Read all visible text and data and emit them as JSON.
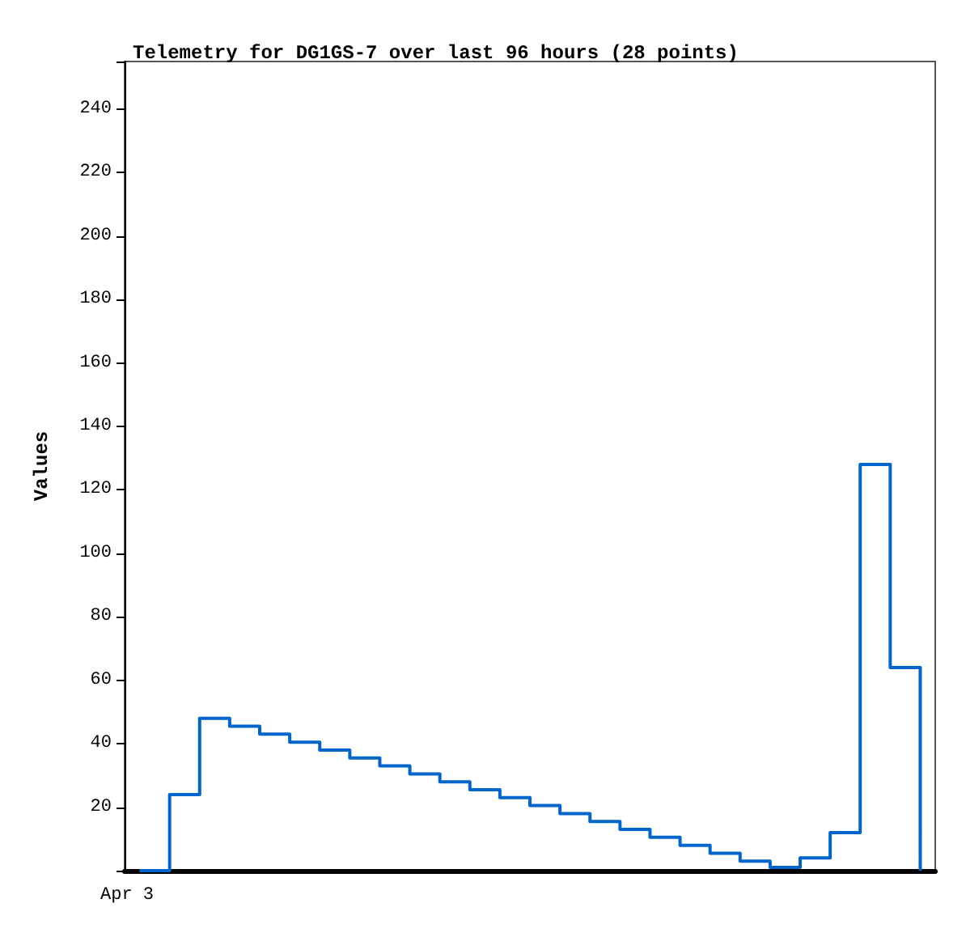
{
  "chart_data": {
    "type": "step",
    "title": "Telemetry for DG1GS-7 over last 96 hours (28 points)",
    "ylabel": "Values",
    "annotations": [
      "Apr 3"
    ],
    "categories": [
      null,
      null,
      null,
      null,
      null,
      null,
      null,
      null,
      null,
      null,
      null,
      null,
      null,
      null,
      null,
      null,
      null,
      null,
      null,
      null,
      null,
      null,
      null,
      null,
      null,
      null,
      null
    ],
    "ylim": [
      0,
      255
    ],
    "yticks": [
      {
        "value": 0,
        "label": null
      },
      20,
      40,
      60,
      80,
      100,
      120,
      140,
      160,
      180,
      200,
      220,
      240
    ],
    "grid": false,
    "marker": "none",
    "line_style": "solid",
    "series": [
      {
        "color": "#0066cc",
        "values": [
          0,
          24,
          48,
          45.5,
          43,
          40.5,
          38,
          35.5,
          33,
          30.5,
          28,
          25.5,
          23,
          20.5,
          18,
          15.5,
          13,
          10.5,
          8,
          5.5,
          3,
          1,
          4,
          12,
          128,
          64,
          0
        ]
      }
    ]
  }
}
